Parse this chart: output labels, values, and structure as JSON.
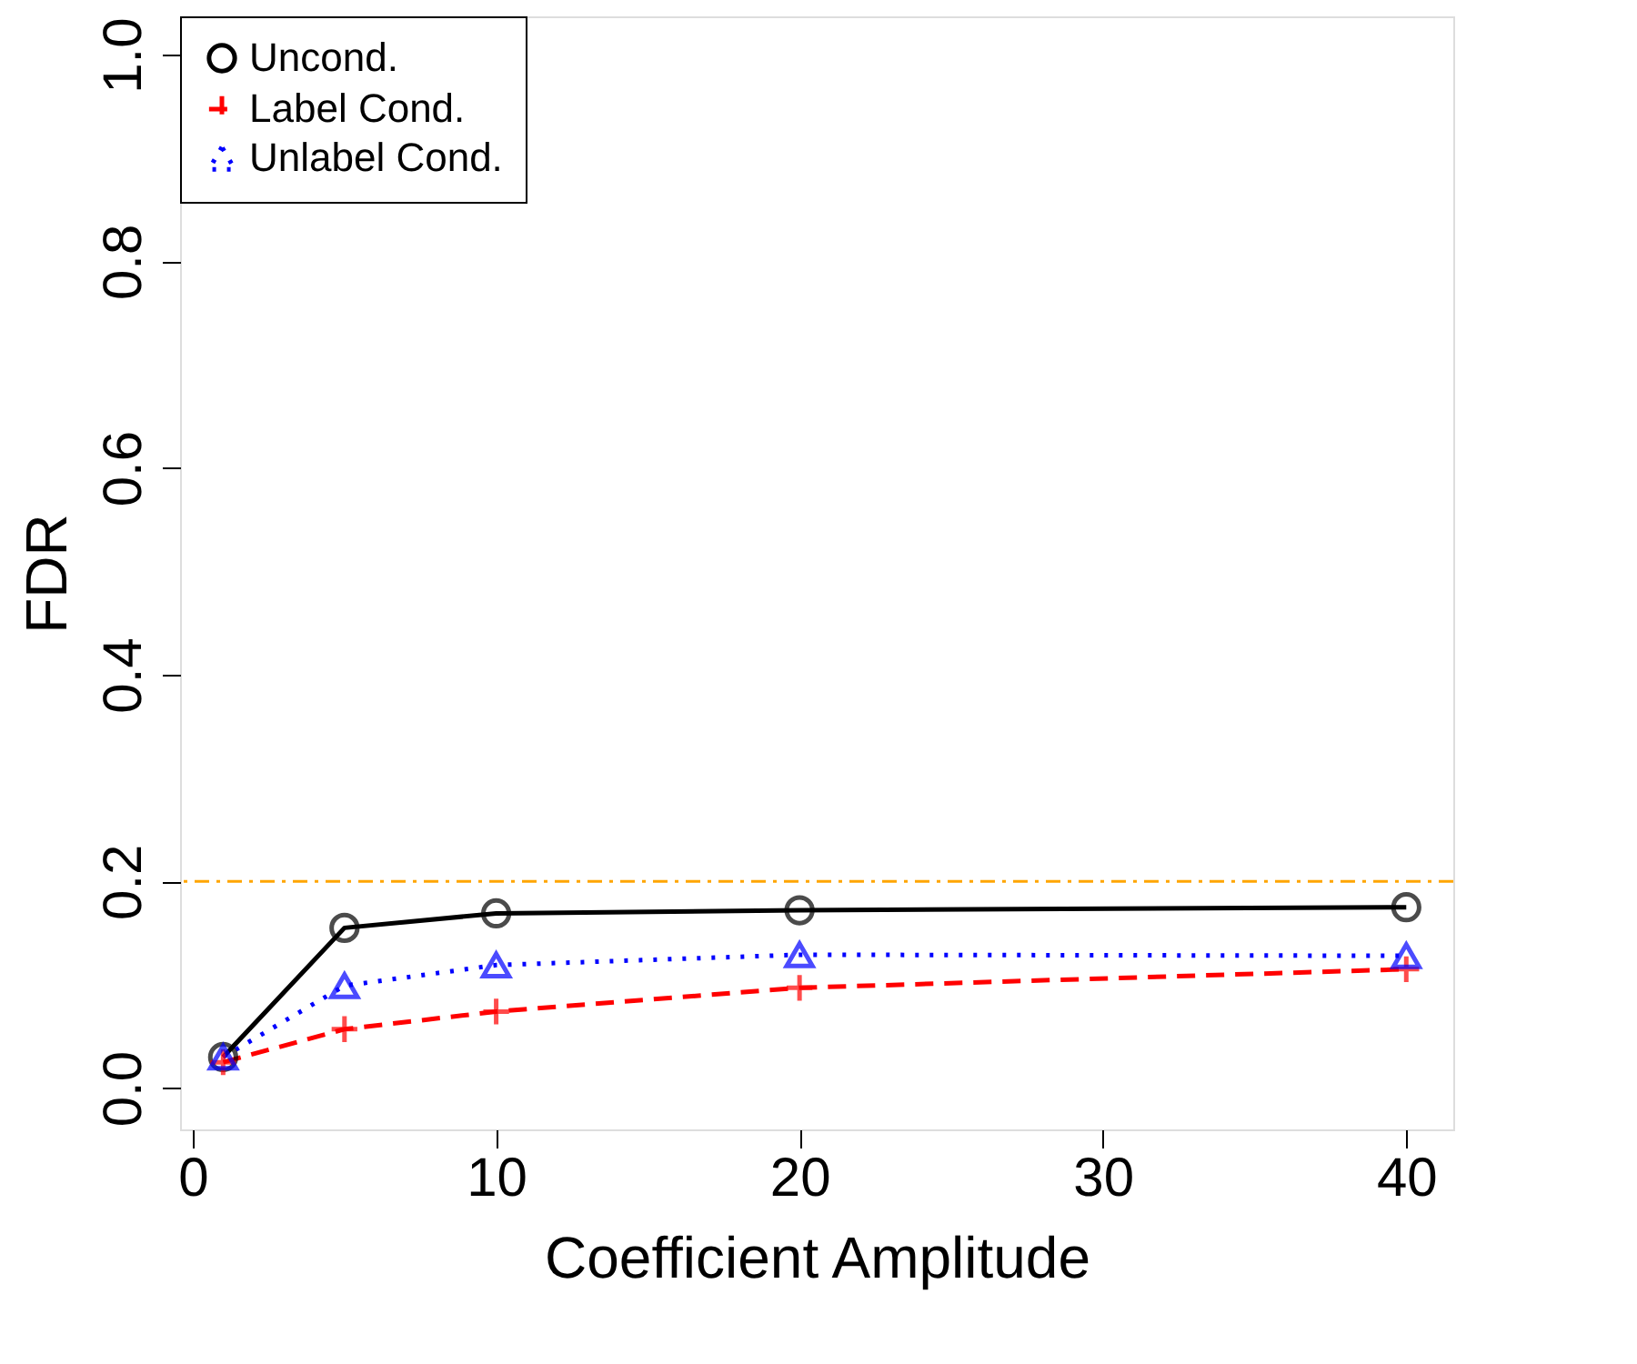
{
  "chart_data": {
    "type": "line",
    "xlabel": "Coefficient Amplitude",
    "ylabel": "FDR",
    "x": [
      1,
      5,
      10,
      20,
      40
    ],
    "series": [
      {
        "name": "Uncond.",
        "color": "#000000",
        "marker": "circle",
        "line_style": "solid",
        "values": [
          0.03,
          0.155,
          0.169,
          0.172,
          0.175
        ]
      },
      {
        "name": "Label Cond.",
        "color": "#ff0000",
        "marker": "cross",
        "line_style": "dashed",
        "values": [
          0.025,
          0.057,
          0.074,
          0.097,
          0.115
        ]
      },
      {
        "name": "Unlabel Cond.",
        "color": "#0000ff",
        "marker": "triangle",
        "line_style": "dotted",
        "values": [
          0.03,
          0.099,
          0.119,
          0.129,
          0.128
        ]
      }
    ],
    "xlim": [
      -0.42,
      41.55
    ],
    "xticks": [
      0,
      10,
      20,
      30,
      40
    ],
    "ylim": [
      -0.04,
      1.037
    ],
    "yticks": [
      {
        "value": 0,
        "label": "0.0"
      },
      0.2,
      0.4,
      0.6,
      0.8,
      {
        "value": 1,
        "label": "1.0"
      }
    ],
    "ref_lines": [
      {
        "axis": "y",
        "value": 0.2,
        "color": "#ffa500",
        "line_style": "dashdot"
      }
    ],
    "grid": false,
    "legend": "top left"
  }
}
